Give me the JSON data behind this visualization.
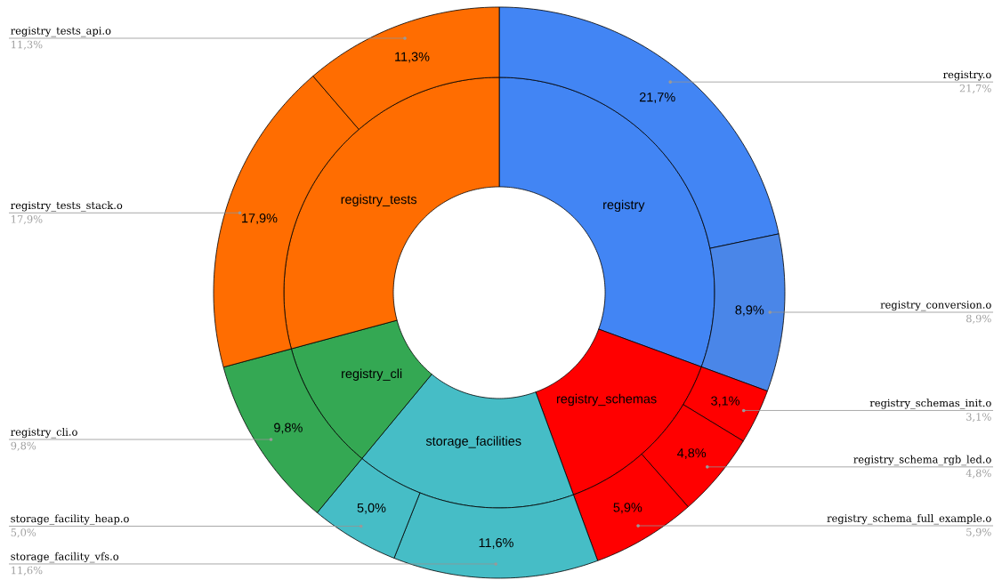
{
  "chart_data": [
    {
      "type": "donut",
      "categories": [
        "registry",
        "registry_schemas",
        "storage_facilities",
        "registry_cli",
        "registry_tests"
      ],
      "values": [
        30.6,
        13.8,
        16.6,
        9.8,
        29.2
      ],
      "colors": [
        "#4285f4",
        "#ff0000",
        "#46bdc6",
        "#34a853",
        "#ff6d01"
      ]
    },
    {
      "type": "donut",
      "categories": [
        "registry.o",
        "registry_conversion.o",
        "registry_schemas_init.o",
        "registry_schema_rgb_led.o",
        "registry_schema_full_example.o",
        "storage_facility_vfs.o",
        "storage_facility_heap.o",
        "registry_cli.o",
        "registry_tests_stack.o",
        "registry_tests_api.o"
      ],
      "values": [
        21.7,
        8.9,
        3.1,
        4.8,
        5.9,
        11.6,
        5.0,
        9.8,
        17.9,
        11.3
      ],
      "colors": [
        "#4285f4",
        "#4a86e8",
        "#ff0000",
        "#ff0000",
        "#ff0000",
        "#46bdc6",
        "#46bdc6",
        "#34a853",
        "#ff6d01",
        "#ff6d01"
      ],
      "value_labels": [
        "21,7%",
        "8,9%",
        "3,1%",
        "4,8%",
        "5,9%",
        "11,6%",
        "5,0%",
        "9,8%",
        "17,9%",
        "11,3%"
      ]
    }
  ]
}
